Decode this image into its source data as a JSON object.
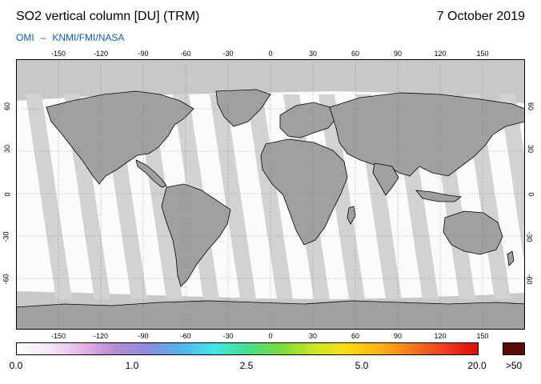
{
  "header": {
    "title": "SO2 vertical column [DU] (TRM)",
    "date": "7 October 2019",
    "source_left": "OMI",
    "source_dash": "–",
    "source_right": "KNMI/FMI/NASA"
  },
  "axes": {
    "lon_ticks": [
      "-150",
      "-120",
      "-90",
      "-60",
      "-30",
      "0",
      "30",
      "60",
      "90",
      "120",
      "150"
    ],
    "lat_ticks": [
      "60",
      "30",
      "0",
      "-30",
      "-60"
    ]
  },
  "colorbar": {
    "labels": [
      "0.0",
      "1.0",
      "2.5",
      "5.0",
      "20.0"
    ],
    "over_label": ">50",
    "colors": [
      "#ffffff",
      "#f5e6f5",
      "#e6b4e6",
      "#b48cd2",
      "#8c8cdc",
      "#50b4f0",
      "#46e6e6",
      "#46dc8c",
      "#78dc3c",
      "#c8e628",
      "#fadc14",
      "#fab414",
      "#f5781e",
      "#f03c1e",
      "#dc0a0a"
    ],
    "over_color": "#5a0a0a"
  },
  "map_colors": {
    "land": "#a0a0a0",
    "nodata_band": "#c8c8c8",
    "ocean_data": "#fbfbfd",
    "coast": "#000000",
    "grid": "#777777"
  }
}
